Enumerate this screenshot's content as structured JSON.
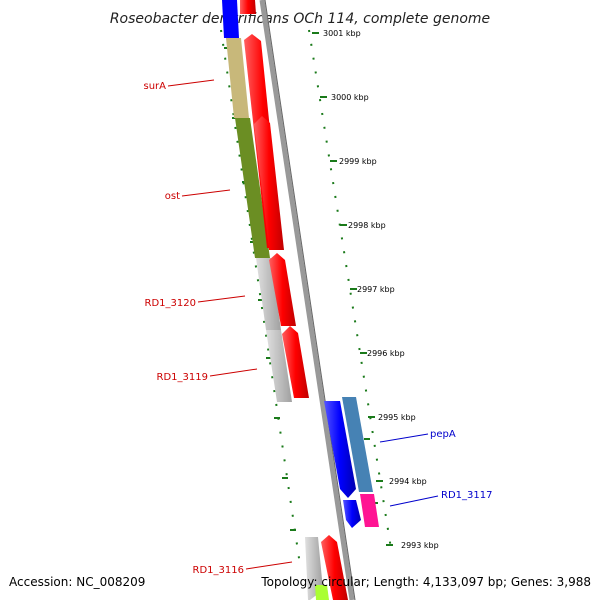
{
  "title": "Roseobacter denitrificans OCh 114, complete genome",
  "footer": {
    "accession": "Accession: NC_008209",
    "topology": "Topology: circular; Length: 4,133,097 bp; Genes: 3,988"
  },
  "scale_labels": [
    "3001 kbp",
    "3000 kbp",
    "2999 kbp",
    "2998 kbp",
    "2997 kbp",
    "2996 kbp",
    "2995 kbp",
    "2994 kbp",
    "2993 kbp"
  ],
  "gene_labels": [
    {
      "text": "surA",
      "color": "#cc0000"
    },
    {
      "text": "ost",
      "color": "#cc0000"
    },
    {
      "text": "RD1_3120",
      "color": "#cc0000"
    },
    {
      "text": "RD1_3119",
      "color": "#cc0000"
    },
    {
      "text": "RD1_3116",
      "color": "#cc0000"
    },
    {
      "text": "pepA",
      "color": "#0000cc"
    },
    {
      "text": "RD1_3117",
      "color": "#0000cc"
    }
  ],
  "colors": {
    "cds_red": "#ff0000",
    "cds_blue": "#0000ff",
    "surA": "#c8b87a",
    "ost": "#6b8e23",
    "grey_gene": "#c0c0c0",
    "steelblue_gene": "#4682b4",
    "magenta_gene": "#ff1493",
    "tick_green": "#1a7a1a",
    "backbone": "#888888"
  }
}
